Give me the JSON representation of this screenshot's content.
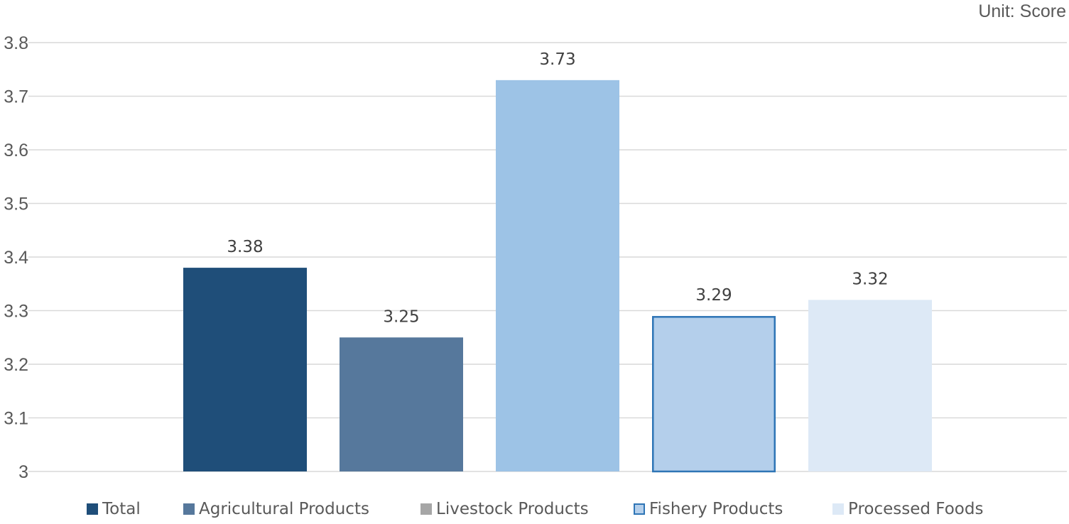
{
  "chart_data": {
    "type": "bar",
    "unit_label": "Unit: Score",
    "ylim": [
      3.0,
      3.8
    ],
    "y_ticks": [
      3,
      3.1,
      3.2,
      3.3,
      3.4,
      3.5,
      3.6,
      3.7,
      3.8
    ],
    "y_tick_labels": [
      "3",
      "3.1",
      "3.2",
      "3.3",
      "3.4",
      "3.5",
      "3.6",
      "3.7",
      "3.8"
    ],
    "grid": true,
    "legend_position": "bottom",
    "series": [
      {
        "name": "Total",
        "value": 3.38,
        "label": "3.38",
        "color": "#1f4e79",
        "border": null
      },
      {
        "name": "Agricultural Products",
        "value": 3.25,
        "label": "3.25",
        "color": "#56789c",
        "border": null
      },
      {
        "name": "Livestock Products",
        "value": 3.73,
        "label": "3.73",
        "color": "#9dc3e6",
        "legend_color": "#a6a6a6",
        "border": null
      },
      {
        "name": "Fishery Products",
        "value": 3.29,
        "label": "3.29",
        "color": "#b4cfeb",
        "border": "#2e75b6"
      },
      {
        "name": "Processed Foods",
        "value": 3.32,
        "label": "3.32",
        "color": "#dde9f6",
        "border": null
      }
    ]
  }
}
